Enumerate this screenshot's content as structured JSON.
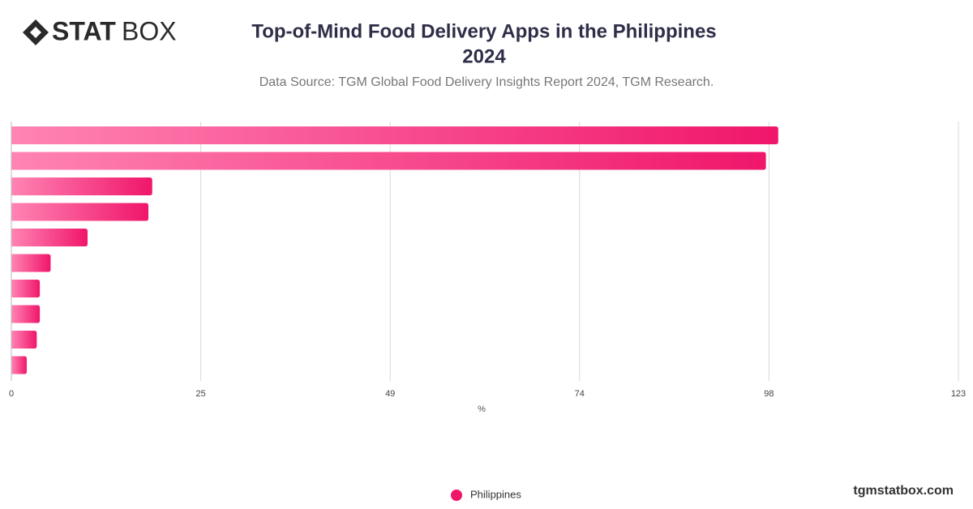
{
  "brand": {
    "logo_bold": "STAT",
    "logo_light": "BOX",
    "site": "tgmstatbox.com"
  },
  "chart_data": {
    "type": "hbar",
    "title": "Top-of-Mind Food Delivery Apps in the Philippines",
    "title_year": "2024",
    "subtitle": "Data Source: TGM Global Food Delivery Insights Report 2024, TGM Research.",
    "x_label": "%",
    "categories": [
      null,
      null,
      null,
      null,
      null,
      null,
      null,
      null,
      null,
      null
    ],
    "series": [
      {
        "name": "Philippines",
        "color": "#f0166a",
        "values": [
          99.6,
          98.0,
          18.3,
          17.8,
          9.9,
          5.1,
          3.7,
          3.7,
          3.3,
          2.0
        ]
      }
    ],
    "xlim": [
      0,
      123
    ],
    "xticks": [
      0,
      {
        "value": 24.6,
        "label": "25"
      },
      {
        "value": 49.2,
        "label": "49"
      },
      {
        "value": 73.8,
        "label": "74"
      },
      {
        "value": 98.4,
        "label": "98"
      },
      123
    ],
    "grid": true
  }
}
